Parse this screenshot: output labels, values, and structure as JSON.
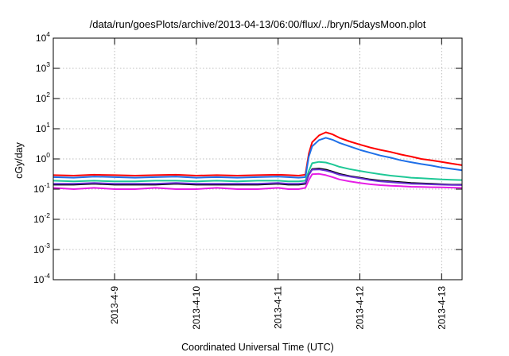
{
  "chart_data": {
    "type": "line",
    "title": "/data/run/goesPlots/archive/2013-04-13/06:00/flux/../bryn/5daysMoon.plot",
    "xlabel": "Coordinated Universal Time (UTC)",
    "ylabel": "cGy/day",
    "yscale": "log",
    "ylim": [
      0.0001,
      10000
    ],
    "xlim": [
      "2013-04-08T06:00",
      "2013-04-13T06:00"
    ],
    "grid": true,
    "ytick_labels": [
      {
        "base": "10",
        "exp": "4"
      },
      {
        "base": "10",
        "exp": "3"
      },
      {
        "base": "10",
        "exp": "2"
      },
      {
        "base": "10",
        "exp": "1"
      },
      {
        "base": "10",
        "exp": "0"
      },
      {
        "base": "10",
        "exp": "-1"
      },
      {
        "base": "10",
        "exp": "-2"
      },
      {
        "base": "10",
        "exp": "-3"
      },
      {
        "base": "10",
        "exp": "-4"
      }
    ],
    "xtick_labels": [
      "2013-4-9",
      "2013-4-10",
      "2013-4-11",
      "2013-4-12",
      "2013-4-13"
    ],
    "x": [
      "2013-04-08T06:00",
      "2013-04-08T12:00",
      "2013-04-08T18:00",
      "2013-04-09T00:00",
      "2013-04-09T06:00",
      "2013-04-09T12:00",
      "2013-04-09T18:00",
      "2013-04-10T00:00",
      "2013-04-10T06:00",
      "2013-04-10T12:00",
      "2013-04-10T18:00",
      "2013-04-11T00:00",
      "2013-04-11T03:00",
      "2013-04-11T06:00",
      "2013-04-11T08:00",
      "2013-04-11T09:00",
      "2013-04-11T10:00",
      "2013-04-11T12:00",
      "2013-04-11T14:00",
      "2013-04-11T16:00",
      "2013-04-11T18:00",
      "2013-04-11T21:00",
      "2013-04-12T00:00",
      "2013-04-12T03:00",
      "2013-04-12T06:00",
      "2013-04-12T09:00",
      "2013-04-12T12:00",
      "2013-04-12T15:00",
      "2013-04-12T18:00",
      "2013-04-12T21:00",
      "2013-04-13T00:00",
      "2013-04-13T03:00",
      "2013-04-13T06:00"
    ],
    "series": [
      {
        "color": "#ff0000",
        "values": [
          0.29,
          0.28,
          0.3,
          0.29,
          0.28,
          0.29,
          0.3,
          0.28,
          0.29,
          0.28,
          0.29,
          0.3,
          0.29,
          0.28,
          0.3,
          1.5,
          3.6,
          6.0,
          7.6,
          6.5,
          5.0,
          3.8,
          3.0,
          2.4,
          2.0,
          1.7,
          1.4,
          1.2,
          1.0,
          0.9,
          0.8,
          0.7,
          0.62
        ]
      },
      {
        "color": "#1e6fe8",
        "values": [
          0.25,
          0.24,
          0.26,
          0.25,
          0.24,
          0.25,
          0.26,
          0.24,
          0.25,
          0.24,
          0.25,
          0.26,
          0.25,
          0.24,
          0.25,
          1.2,
          2.6,
          4.2,
          5.0,
          4.3,
          3.4,
          2.6,
          2.0,
          1.6,
          1.3,
          1.1,
          0.9,
          0.78,
          0.68,
          0.6,
          0.52,
          0.47,
          0.42
        ]
      },
      {
        "color": "#1ec896",
        "values": [
          0.19,
          0.18,
          0.19,
          0.18,
          0.18,
          0.19,
          0.19,
          0.18,
          0.19,
          0.18,
          0.19,
          0.19,
          0.18,
          0.18,
          0.19,
          0.4,
          0.72,
          0.8,
          0.76,
          0.66,
          0.55,
          0.46,
          0.4,
          0.35,
          0.31,
          0.28,
          0.26,
          0.24,
          0.23,
          0.22,
          0.21,
          0.205,
          0.2
        ]
      },
      {
        "color": "#000000",
        "values": [
          0.14,
          0.14,
          0.15,
          0.14,
          0.14,
          0.14,
          0.15,
          0.14,
          0.14,
          0.14,
          0.14,
          0.15,
          0.14,
          0.14,
          0.15,
          0.3,
          0.46,
          0.48,
          0.44,
          0.38,
          0.32,
          0.27,
          0.24,
          0.21,
          0.19,
          0.18,
          0.17,
          0.16,
          0.155,
          0.15,
          0.145,
          0.14,
          0.14
        ]
      },
      {
        "color": "#6a2fd4",
        "values": [
          0.15,
          0.15,
          0.16,
          0.15,
          0.15,
          0.15,
          0.16,
          0.15,
          0.15,
          0.15,
          0.15,
          0.16,
          0.15,
          0.15,
          0.16,
          0.3,
          0.44,
          0.45,
          0.41,
          0.36,
          0.3,
          0.26,
          0.23,
          0.2,
          0.18,
          0.17,
          0.16,
          0.15,
          0.148,
          0.144,
          0.14,
          0.138,
          0.136
        ]
      },
      {
        "color": "#e61ee6",
        "values": [
          0.11,
          0.1,
          0.11,
          0.1,
          0.1,
          0.11,
          0.1,
          0.1,
          0.11,
          0.1,
          0.1,
          0.11,
          0.1,
          0.1,
          0.11,
          0.2,
          0.31,
          0.32,
          0.29,
          0.25,
          0.21,
          0.18,
          0.16,
          0.145,
          0.135,
          0.13,
          0.125,
          0.12,
          0.118,
          0.116,
          0.114,
          0.112,
          0.11
        ]
      }
    ]
  }
}
